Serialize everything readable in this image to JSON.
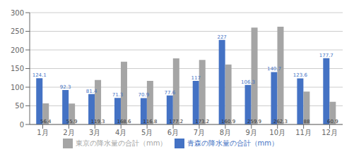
{
  "chart_data": {
    "type": "bar",
    "categories": [
      "1月",
      "2月",
      "3月",
      "4月",
      "5月",
      "6月",
      "7月",
      "8月",
      "9月",
      "10月",
      "11月",
      "12月"
    ],
    "series": [
      {
        "name": "青森の降水量の合計（mm）",
        "color": "#4472C4",
        "values": [
          124.1,
          92.3,
          81.4,
          71.3,
          70.9,
          77.6,
          117,
          227,
          106.3,
          140.7,
          123.6,
          177.7
        ]
      },
      {
        "name": "東京の降水量の合計（mm）",
        "color": "#A5A5A5",
        "values": [
          56.4,
          55.9,
          119.3,
          168.6,
          116.8,
          177.2,
          173.2,
          160.9,
          259.9,
          262.3,
          88,
          60.9
        ]
      }
    ],
    "ylim": [
      0,
      300
    ],
    "yticks": [
      0,
      50,
      100,
      150,
      200,
      250,
      300
    ],
    "grid": true,
    "legend": "bottom",
    "data_labels": true
  }
}
